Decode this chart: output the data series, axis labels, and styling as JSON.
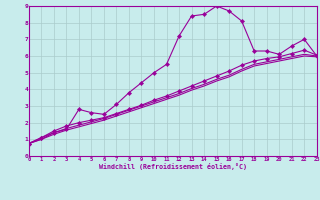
{
  "xlabel": "Windchill (Refroidissement éolien,°C)",
  "bg_color": "#c8ecec",
  "line_color": "#990099",
  "grid_color": "#aacccc",
  "axis_color": "#660066",
  "xmin": 0,
  "xmax": 23,
  "ymin": 0,
  "ymax": 9,
  "line1_x": [
    0,
    1,
    2,
    3,
    4,
    5,
    6,
    7,
    8,
    9,
    10,
    11,
    12,
    13,
    14,
    15,
    16,
    17,
    18,
    19,
    20,
    21,
    22,
    23
  ],
  "line1_y": [
    0.75,
    1.1,
    1.4,
    1.6,
    2.8,
    2.6,
    2.5,
    3.1,
    3.8,
    4.4,
    5.0,
    5.5,
    7.2,
    8.4,
    8.5,
    9.0,
    8.7,
    8.1,
    6.3,
    6.3,
    6.1,
    6.6,
    7.0,
    6.0
  ],
  "line2_x": [
    0,
    1,
    2,
    3,
    4,
    5,
    6,
    7,
    8,
    9,
    10,
    11,
    12,
    13,
    14,
    15,
    16,
    17,
    18,
    19,
    20,
    21,
    22,
    23
  ],
  "line2_y": [
    0.75,
    1.1,
    1.5,
    1.8,
    2.0,
    2.15,
    2.3,
    2.55,
    2.8,
    3.05,
    3.35,
    3.6,
    3.9,
    4.2,
    4.5,
    4.8,
    5.1,
    5.45,
    5.7,
    5.85,
    5.95,
    6.15,
    6.35,
    6.05
  ],
  "line3_x": [
    0,
    1,
    2,
    3,
    4,
    5,
    6,
    7,
    8,
    9,
    10,
    11,
    12,
    13,
    14,
    15,
    16,
    17,
    18,
    19,
    20,
    21,
    22,
    23
  ],
  "line3_y": [
    0.75,
    1.0,
    1.4,
    1.65,
    1.85,
    2.05,
    2.25,
    2.5,
    2.75,
    3.0,
    3.25,
    3.5,
    3.75,
    4.05,
    4.3,
    4.6,
    4.85,
    5.2,
    5.5,
    5.65,
    5.8,
    5.95,
    6.1,
    6.0
  ],
  "line4_x": [
    0,
    1,
    2,
    3,
    4,
    5,
    6,
    7,
    8,
    9,
    10,
    11,
    12,
    13,
    14,
    15,
    16,
    17,
    18,
    19,
    20,
    21,
    22,
    23
  ],
  "line4_y": [
    0.75,
    1.0,
    1.3,
    1.55,
    1.75,
    1.95,
    2.15,
    2.4,
    2.65,
    2.9,
    3.15,
    3.4,
    3.65,
    3.95,
    4.2,
    4.5,
    4.75,
    5.1,
    5.4,
    5.55,
    5.7,
    5.85,
    6.0,
    5.95
  ]
}
